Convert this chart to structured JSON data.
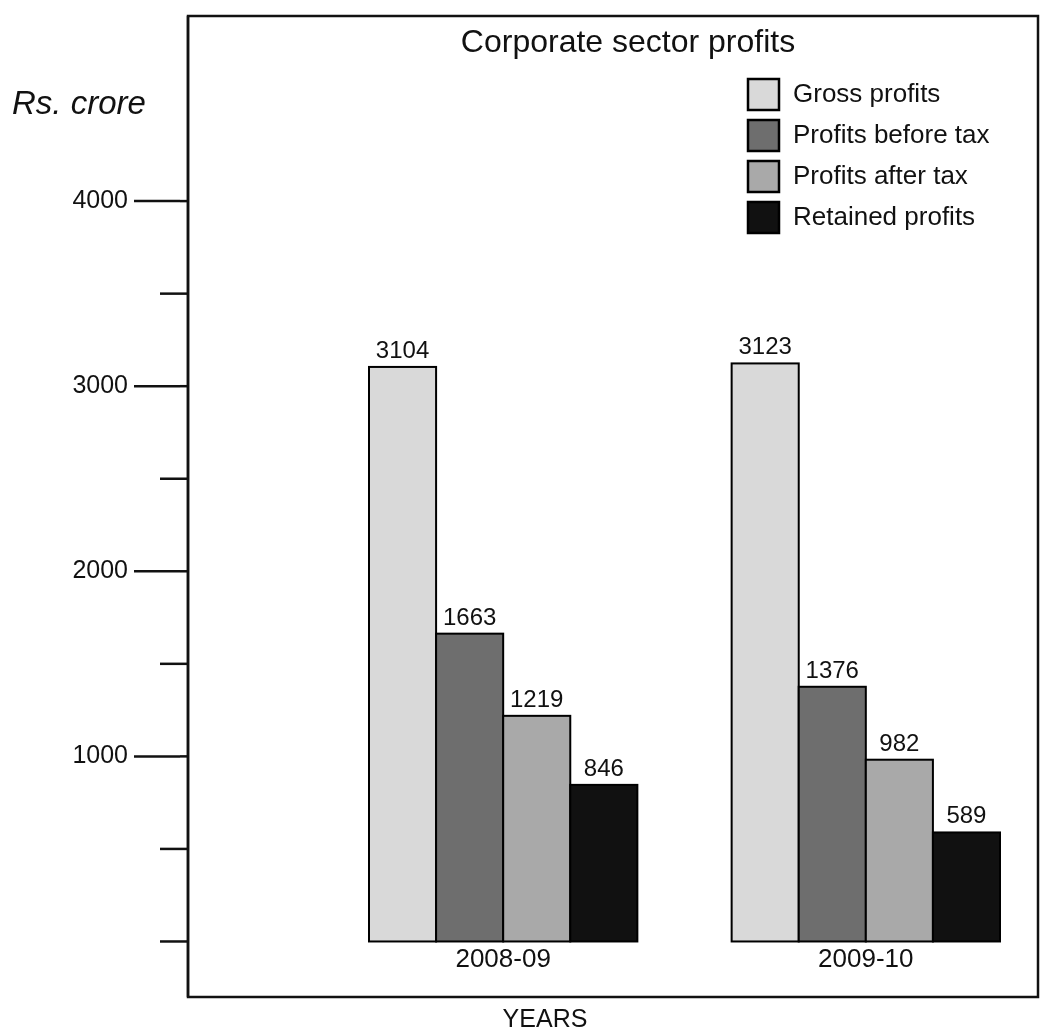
{
  "chart_data": {
    "type": "bar",
    "title": "Corporate sector profits",
    "xlabel": "YEARS",
    "ylabel": "Rs. crore",
    "categories": [
      "2008-09",
      "2009-10"
    ],
    "series": [
      {
        "name": "Gross profits",
        "color": "#d9d9d9",
        "values": [
          3104,
          3123
        ]
      },
      {
        "name": "Profits before tax",
        "color": "#6e6e6e",
        "values": [
          1663,
          1376
        ]
      },
      {
        "name": "Profits after tax",
        "color": "#a9a9a9",
        "values": [
          1219,
          982
        ]
      },
      {
        "name": "Retained profits",
        "color": "#111111",
        "values": [
          846,
          589
        ]
      }
    ],
    "ylim": [
      -300,
      5000
    ],
    "yticks": [
      {
        "value": 0,
        "label": null
      },
      {
        "value": 500,
        "label": null
      },
      1000,
      {
        "value": 1500,
        "label": null
      },
      2000,
      {
        "value": 2500,
        "label": null
      },
      3000,
      {
        "value": 3500,
        "label": null
      },
      4000
    ],
    "data_labels": true,
    "legend": "top right"
  }
}
